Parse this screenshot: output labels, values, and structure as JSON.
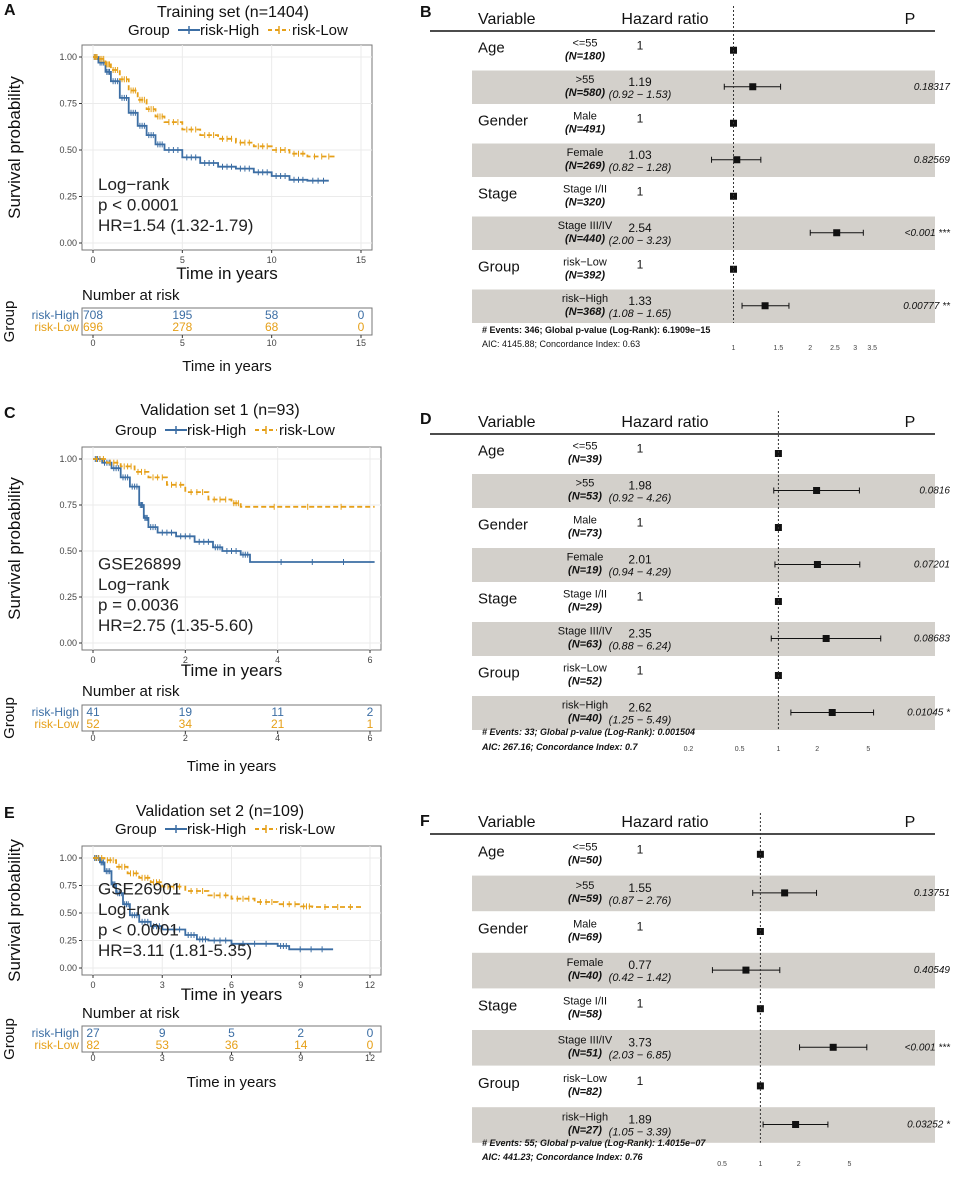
{
  "colors": {
    "high": "#3C6EA4",
    "low": "#E6A019",
    "band": "#D3D0CB",
    "panel_border": "#777777",
    "grid": "#EBEBEB"
  },
  "common": {
    "ylabel": "Survival probability",
    "xlabel": "Time in years",
    "legend_title": "Group",
    "legend_high": "risk-High",
    "legend_low": "risk-Low",
    "risk_title": "Number at risk",
    "risk_ylabel": "Group",
    "y_ticks": [
      "0.00",
      "0.25",
      "0.50",
      "0.75",
      "1.00"
    ],
    "forest_headers": [
      "Variable",
      "Hazard ratio",
      "P"
    ]
  },
  "chart_data": [
    {
      "panel": "A",
      "type": "line",
      "title": "Training set (n=1404)",
      "ylim": [
        0,
        1
      ],
      "xlim": [
        0,
        15
      ],
      "x_ticks": [
        0,
        5,
        10,
        15
      ],
      "annotations": [
        "Log−rank",
        "p < 0.0001",
        "HR=1.54 (1.32-1.79)"
      ],
      "series": [
        {
          "name": "risk-High",
          "points": [
            [
              0,
              1
            ],
            [
              0.3,
              0.97
            ],
            [
              0.7,
              0.92
            ],
            [
              1,
              0.87
            ],
            [
              1.5,
              0.78
            ],
            [
              2,
              0.7
            ],
            [
              2.5,
              0.63
            ],
            [
              3,
              0.58
            ],
            [
              3.5,
              0.53
            ],
            [
              4,
              0.5
            ],
            [
              5,
              0.46
            ],
            [
              6,
              0.43
            ],
            [
              7,
              0.41
            ],
            [
              8,
              0.4
            ],
            [
              9,
              0.38
            ],
            [
              10,
              0.36
            ],
            [
              11,
              0.34
            ],
            [
              12,
              0.335
            ],
            [
              13.2,
              0.335
            ]
          ]
        },
        {
          "name": "risk-Low",
          "points": [
            [
              0,
              1
            ],
            [
              0.3,
              0.99
            ],
            [
              0.7,
              0.96
            ],
            [
              1,
              0.93
            ],
            [
              1.5,
              0.88
            ],
            [
              2,
              0.82
            ],
            [
              2.5,
              0.77
            ],
            [
              3,
              0.72
            ],
            [
              3.5,
              0.68
            ],
            [
              4,
              0.65
            ],
            [
              5,
              0.61
            ],
            [
              6,
              0.58
            ],
            [
              7,
              0.56
            ],
            [
              8,
              0.54
            ],
            [
              9,
              0.52
            ],
            [
              10,
              0.5
            ],
            [
              11,
              0.48
            ],
            [
              12,
              0.465
            ],
            [
              13.6,
              0.465
            ]
          ]
        }
      ],
      "risk_x": [
        0,
        5,
        10,
        15
      ],
      "risk_high": [
        "708",
        "195",
        "58",
        "0"
      ],
      "risk_low": [
        "696",
        "278",
        "68",
        "0"
      ]
    },
    {
      "panel": "C",
      "type": "line",
      "title": "Validation set 1 (n=93)",
      "ylim": [
        0,
        1
      ],
      "xlim": [
        0,
        6
      ],
      "x_ticks": [
        0,
        2,
        4,
        6
      ],
      "annotations": [
        "GSE26899",
        "Log−rank",
        "p = 0.0036",
        "HR=2.75 (1.35-5.60)"
      ],
      "series": [
        {
          "name": "risk-High",
          "points": [
            [
              0,
              1
            ],
            [
              0.2,
              0.98
            ],
            [
              0.4,
              0.95
            ],
            [
              0.6,
              0.9
            ],
            [
              0.8,
              0.85
            ],
            [
              1,
              0.75
            ],
            [
              1.1,
              0.68
            ],
            [
              1.2,
              0.63
            ],
            [
              1.4,
              0.6
            ],
            [
              1.8,
              0.58
            ],
            [
              2.2,
              0.55
            ],
            [
              2.6,
              0.52
            ],
            [
              2.8,
              0.5
            ],
            [
              3.2,
              0.48
            ],
            [
              3.4,
              0.44
            ],
            [
              6.1,
              0.44
            ]
          ]
        },
        {
          "name": "risk-Low",
          "points": [
            [
              0,
              1
            ],
            [
              0.3,
              0.98
            ],
            [
              0.6,
              0.96
            ],
            [
              0.9,
              0.93
            ],
            [
              1.2,
              0.9
            ],
            [
              1.6,
              0.86
            ],
            [
              2,
              0.82
            ],
            [
              2.5,
              0.78
            ],
            [
              3,
              0.76
            ],
            [
              3.2,
              0.74
            ],
            [
              6.1,
              0.74
            ]
          ]
        }
      ],
      "risk_x": [
        0,
        2,
        4,
        6
      ],
      "risk_high": [
        "41",
        "19",
        "11",
        "2"
      ],
      "risk_low": [
        "52",
        "34",
        "21",
        "1"
      ]
    },
    {
      "panel": "E",
      "type": "line",
      "title": "Validation set 2 (n=109)",
      "ylim": [
        0,
        1
      ],
      "xlim": [
        0,
        12
      ],
      "x_ticks": [
        0,
        3,
        6,
        9,
        12
      ],
      "annotations": [
        "GSE26901",
        "Log−rank",
        "p < 0.0001",
        "HR=3.11 (1.81-5.35)"
      ],
      "series": [
        {
          "name": "risk-High",
          "points": [
            [
              0,
              1
            ],
            [
              0.3,
              0.96
            ],
            [
              0.5,
              0.88
            ],
            [
              0.8,
              0.76
            ],
            [
              1,
              0.68
            ],
            [
              1.3,
              0.58
            ],
            [
              1.6,
              0.48
            ],
            [
              2,
              0.42
            ],
            [
              2.5,
              0.38
            ],
            [
              3,
              0.35
            ],
            [
              4,
              0.3
            ],
            [
              4.5,
              0.26
            ],
            [
              5,
              0.25
            ],
            [
              6,
              0.22
            ],
            [
              8,
              0.2
            ],
            [
              8.5,
              0.17
            ],
            [
              10.4,
              0.17
            ]
          ]
        },
        {
          "name": "risk-Low",
          "points": [
            [
              0,
              1
            ],
            [
              0.5,
              0.98
            ],
            [
              1,
              0.92
            ],
            [
              1.5,
              0.86
            ],
            [
              2,
              0.82
            ],
            [
              2.5,
              0.78
            ],
            [
              3,
              0.74
            ],
            [
              4,
              0.7
            ],
            [
              5,
              0.66
            ],
            [
              6,
              0.63
            ],
            [
              7,
              0.6
            ],
            [
              8,
              0.58
            ],
            [
              9,
              0.56
            ],
            [
              9.5,
              0.555
            ],
            [
              11.7,
              0.555
            ]
          ]
        }
      ],
      "risk_x": [
        0,
        3,
        6,
        9,
        12
      ],
      "risk_high": [
        "27",
        "9",
        "5",
        "2",
        "0"
      ],
      "risk_low": [
        "82",
        "53",
        "36",
        "14",
        "0"
      ]
    },
    {
      "panel": "B",
      "type": "forest",
      "log_range": [
        0.78,
        4.3
      ],
      "ticks": [
        {
          "v": 1,
          "label": "1"
        },
        {
          "v": 1.5,
          "label": "1.5"
        },
        {
          "v": 2,
          "label": "2"
        },
        {
          "v": 2.5,
          "label": "2.5"
        },
        {
          "v": 3,
          "label": "3"
        },
        {
          "v": 3.5,
          "label": "3.5"
        }
      ],
      "rows": [
        {
          "var": "Age",
          "level": "<=55",
          "n": "(N=180)",
          "hr": 1,
          "hr_text": "1",
          "ci": null,
          "ci_text": "",
          "p": ""
        },
        {
          "var": "",
          "level": ">55",
          "n": "(N=580)",
          "hr": 1.19,
          "hr_text": "1.19",
          "ci": [
            0.92,
            1.53
          ],
          "ci_text": "(0.92 − 1.53)",
          "p": "0.18317"
        },
        {
          "var": "Gender",
          "level": "Male",
          "n": "(N=491)",
          "hr": 1,
          "hr_text": "1",
          "ci": null,
          "ci_text": "",
          "p": ""
        },
        {
          "var": "",
          "level": "Female",
          "n": "(N=269)",
          "hr": 1.03,
          "hr_text": "1.03",
          "ci": [
            0.82,
            1.28
          ],
          "ci_text": "(0.82 − 1.28)",
          "p": "0.82569"
        },
        {
          "var": "Stage",
          "level": "Stage I/II",
          "n": "(N=320)",
          "hr": 1,
          "hr_text": "1",
          "ci": null,
          "ci_text": "",
          "p": ""
        },
        {
          "var": "",
          "level": "Stage III/IV",
          "n": "(N=440)",
          "hr": 2.54,
          "hr_text": "2.54",
          "ci": [
            2.0,
            3.23
          ],
          "ci_text": "(2.00 − 3.23)",
          "p": "<0.001 ***"
        },
        {
          "var": "Group",
          "level": "risk−Low",
          "n": "(N=392)",
          "hr": 1,
          "hr_text": "1",
          "ci": null,
          "ci_text": "",
          "p": ""
        },
        {
          "var": "",
          "level": "risk−High",
          "n": "(N=368)",
          "hr": 1.33,
          "hr_text": "1.33",
          "ci": [
            1.08,
            1.65
          ],
          "ci_text": "(1.08 − 1.65)",
          "p": "0.00777 **"
        }
      ],
      "footer": [
        "# Events: 346; Global p-value (Log-Rank): 6.1909e−15",
        "AIC: 4145.88; Concordance Index: 0.63"
      ]
    },
    {
      "panel": "D",
      "type": "forest",
      "log_range": [
        0.16,
        8.5
      ],
      "ticks": [
        {
          "v": 0.2,
          "label": "0.2"
        },
        {
          "v": 0.5,
          "label": "0.5"
        },
        {
          "v": 1,
          "label": "1"
        },
        {
          "v": 2,
          "label": "2"
        },
        {
          "v": 5,
          "label": "5"
        }
      ],
      "rows": [
        {
          "var": "Age",
          "level": "<=55",
          "n": "(N=39)",
          "hr": 1,
          "hr_text": "1",
          "ci": null,
          "ci_text": "",
          "p": ""
        },
        {
          "var": "",
          "level": ">55",
          "n": "(N=53)",
          "hr": 1.98,
          "hr_text": "1.98",
          "ci": [
            0.92,
            4.26
          ],
          "ci_text": "(0.92 − 4.26)",
          "p": "0.0816"
        },
        {
          "var": "Gender",
          "level": "Male",
          "n": "(N=73)",
          "hr": 1,
          "hr_text": "1",
          "ci": null,
          "ci_text": "",
          "p": ""
        },
        {
          "var": "",
          "level": "Female",
          "n": "(N=19)",
          "hr": 2.01,
          "hr_text": "2.01",
          "ci": [
            0.94,
            4.29
          ],
          "ci_text": "(0.94 − 4.29)",
          "p": "0.07201"
        },
        {
          "var": "Stage",
          "level": "Stage I/II",
          "n": "(N=29)",
          "hr": 1,
          "hr_text": "1",
          "ci": null,
          "ci_text": "",
          "p": ""
        },
        {
          "var": "",
          "level": "Stage III/IV",
          "n": "(N=63)",
          "hr": 2.35,
          "hr_text": "2.35",
          "ci": [
            0.88,
            6.24
          ],
          "ci_text": "(0.88 − 6.24)",
          "p": "0.08683"
        },
        {
          "var": "Group",
          "level": "risk−Low",
          "n": "(N=52)",
          "hr": 1,
          "hr_text": "1",
          "ci": null,
          "ci_text": "",
          "p": ""
        },
        {
          "var": "",
          "level": "risk−High",
          "n": "(N=40)",
          "hr": 2.62,
          "hr_text": "2.62",
          "ci": [
            1.25,
            5.49
          ],
          "ci_text": "(1.25 − 5.49)",
          "p": "0.01045 *"
        }
      ],
      "footer": [
        "# Events: 33; Global p-value (Log-Rank): 0.001504",
        "AIC: 267.16; Concordance Index: 0.7"
      ]
    },
    {
      "panel": "F",
      "type": "forest",
      "log_range": [
        0.28,
        11
      ],
      "ticks": [
        {
          "v": 0.5,
          "label": "0.5"
        },
        {
          "v": 1,
          "label": "1"
        },
        {
          "v": 2,
          "label": "2"
        },
        {
          "v": 5,
          "label": "5"
        }
      ],
      "rows": [
        {
          "var": "Age",
          "level": "<=55",
          "n": "(N=50)",
          "hr": 1,
          "hr_text": "1",
          "ci": null,
          "ci_text": "",
          "p": ""
        },
        {
          "var": "",
          "level": ">55",
          "n": "(N=59)",
          "hr": 1.55,
          "hr_text": "1.55",
          "ci": [
            0.87,
            2.76
          ],
          "ci_text": "(0.87 − 2.76)",
          "p": "0.13751"
        },
        {
          "var": "Gender",
          "level": "Male",
          "n": "(N=69)",
          "hr": 1,
          "hr_text": "1",
          "ci": null,
          "ci_text": "",
          "p": ""
        },
        {
          "var": "",
          "level": "Female",
          "n": "(N=40)",
          "hr": 0.77,
          "hr_text": "0.77",
          "ci": [
            0.42,
            1.42
          ],
          "ci_text": "(0.42 − 1.42)",
          "p": "0.40549"
        },
        {
          "var": "Stage",
          "level": "Stage I/II",
          "n": "(N=58)",
          "hr": 1,
          "hr_text": "1",
          "ci": null,
          "ci_text": "",
          "p": ""
        },
        {
          "var": "",
          "level": "Stage III/IV",
          "n": "(N=51)",
          "hr": 3.73,
          "hr_text": "3.73",
          "ci": [
            2.03,
            6.85
          ],
          "ci_text": "(2.03 − 6.85)",
          "p": "<0.001 ***"
        },
        {
          "var": "Group",
          "level": "risk−Low",
          "n": "(N=82)",
          "hr": 1,
          "hr_text": "1",
          "ci": null,
          "ci_text": "",
          "p": ""
        },
        {
          "var": "",
          "level": "risk−High",
          "n": "(N=27)",
          "hr": 1.89,
          "hr_text": "1.89",
          "ci": [
            1.05,
            3.39
          ],
          "ci_text": "(1.05 − 3.39)",
          "p": "0.03252 *"
        }
      ],
      "footer": [
        "# Events: 55; Global p-value (Log-Rank): 1.4015e−07",
        "AIC: 441.23; Concordance Index: 0.76"
      ]
    }
  ]
}
